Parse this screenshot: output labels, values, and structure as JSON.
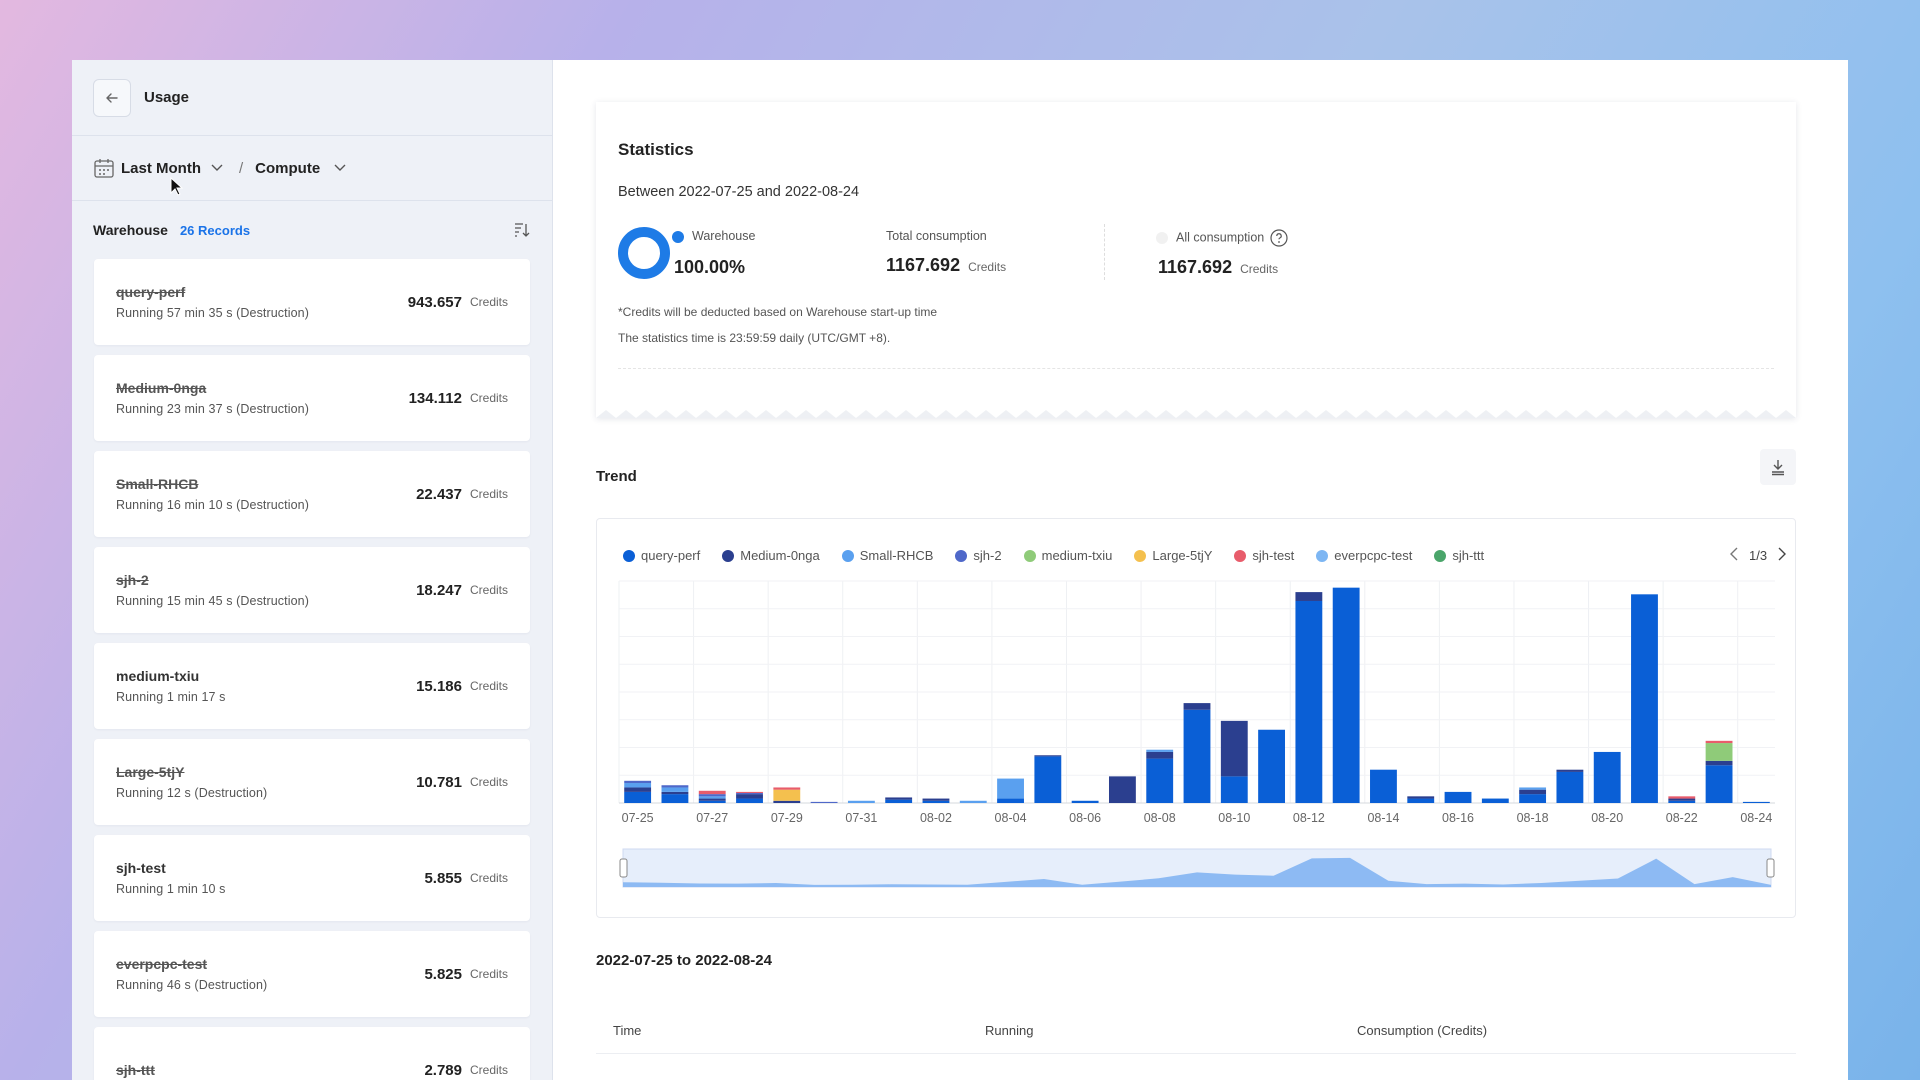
{
  "sidebar": {
    "title": "Usage",
    "period": "Last Month",
    "separator": "/",
    "resource": "Compute",
    "list_title": "Warehouse",
    "records": "26 Records",
    "credits_unit": "Credits",
    "items": [
      {
        "name": "query-perf",
        "strike": true,
        "sub": "Running 57 min 35 s (Destruction)",
        "value": "943.657"
      },
      {
        "name": "Medium-0nga",
        "strike": true,
        "sub": "Running 23 min 37 s (Destruction)",
        "value": "134.112"
      },
      {
        "name": "Small-RHCB",
        "strike": true,
        "sub": "Running 16 min 10 s (Destruction)",
        "value": "22.437"
      },
      {
        "name": "sjh-2",
        "strike": true,
        "sub": "Running 15 min 45 s (Destruction)",
        "value": "18.247"
      },
      {
        "name": "medium-txiu",
        "strike": false,
        "sub": "Running 1 min 17 s",
        "value": "15.186"
      },
      {
        "name": "Large-5tjY",
        "strike": true,
        "sub": "Running 12 s (Destruction)",
        "value": "10.781"
      },
      {
        "name": "sjh-test",
        "strike": false,
        "sub": "Running 1 min 10 s",
        "value": "5.855"
      },
      {
        "name": "everpcpc-test",
        "strike": true,
        "sub": "Running 46 s (Destruction)",
        "value": "5.825"
      },
      {
        "name": "sjh-ttt",
        "strike": true,
        "sub": "",
        "value": "2.789"
      }
    ]
  },
  "stats": {
    "title": "Statistics",
    "between": "Between 2022-07-25 and 2022-08-24",
    "warehouse_label": "Warehouse",
    "warehouse_pct": "100.00%",
    "total_label": "Total consumption",
    "total_value": "1167.692",
    "all_label": "All consumption",
    "all_value": "1167.692",
    "unit": "Credits",
    "note1": "*Credits will be deducted based on Warehouse start-up time",
    "note2": "The statistics time is 23:59:59 daily (UTC/GMT +8).",
    "colors": {
      "accent": "#1e7be6"
    }
  },
  "trend": {
    "title": "Trend",
    "pager": "1/3",
    "range_title": "2022-07-25 to 2022-08-24",
    "table_headers": [
      "Time",
      "Running",
      "Consumption (Credits)"
    ]
  },
  "chart_data": {
    "type": "bar",
    "stacked": true,
    "legend": [
      {
        "name": "query-perf",
        "color": "#0a5fd6"
      },
      {
        "name": "Medium-0nga",
        "color": "#2b3f8f"
      },
      {
        "name": "Small-RHCB",
        "color": "#5aa0ef"
      },
      {
        "name": "sjh-2",
        "color": "#4f68c9"
      },
      {
        "name": "medium-txiu",
        "color": "#8fcb79"
      },
      {
        "name": "Large-5tjY",
        "color": "#f4c04e"
      },
      {
        "name": "sjh-test",
        "color": "#e85c6b"
      },
      {
        "name": "everpcpc-test",
        "color": "#7db6f3"
      },
      {
        "name": "sjh-ttt",
        "color": "#4aa56a"
      }
    ],
    "x_tick_labels": [
      "07-25",
      "07-27",
      "07-29",
      "07-31",
      "08-02",
      "08-04",
      "08-06",
      "08-08",
      "08-10",
      "08-12",
      "08-14",
      "08-16",
      "08-18",
      "08-20",
      "08-22",
      "08-24"
    ],
    "categories": [
      "07-25",
      "07-26",
      "07-27",
      "07-28",
      "07-29",
      "07-30",
      "07-31",
      "08-01",
      "08-02",
      "08-03",
      "08-04",
      "08-05",
      "08-06",
      "08-07",
      "08-08",
      "08-09",
      "08-10",
      "08-11",
      "08-12",
      "08-13",
      "08-14",
      "08-15",
      "08-16",
      "08-17",
      "08-18",
      "08-19",
      "08-20",
      "08-21",
      "08-22",
      "08-23",
      "08-24"
    ],
    "series": [
      {
        "name": "query-perf",
        "values": [
          5,
          4,
          1,
          2,
          0,
          0,
          0,
          1.5,
          1,
          0,
          2,
          21,
          1,
          0,
          20,
          42,
          12,
          33,
          91,
          97,
          15,
          2,
          5,
          2,
          4,
          14,
          23,
          94,
          1,
          17,
          0.5
        ]
      },
      {
        "name": "Medium-0nga",
        "values": [
          2,
          1,
          1,
          2,
          1,
          0,
          0,
          1,
          1,
          0,
          0,
          0.5,
          0,
          12,
          3,
          3,
          25,
          0,
          4,
          0,
          0,
          1,
          0,
          0,
          2,
          1,
          0,
          0,
          1,
          2,
          0
        ]
      },
      {
        "name": "Small-RHCB",
        "values": [
          2,
          2,
          1,
          0,
          0,
          0,
          1,
          0,
          0,
          1,
          9,
          0,
          0,
          0,
          1,
          0,
          0,
          0,
          0,
          0,
          0,
          0,
          0,
          0,
          1,
          0,
          0,
          0,
          0,
          0,
          0
        ]
      },
      {
        "name": "sjh-2",
        "values": [
          1,
          1,
          1,
          0.5,
          0,
          0.5,
          0,
          0,
          0,
          0,
          0,
          0,
          0,
          0,
          0,
          0,
          0,
          0,
          0,
          0,
          0,
          0,
          0,
          0,
          0,
          0,
          0,
          0,
          0,
          0,
          0
        ]
      },
      {
        "name": "medium-txiu",
        "values": [
          0,
          0,
          0,
          0,
          0,
          0,
          0,
          0,
          0,
          0,
          0,
          0,
          0,
          0,
          0,
          0,
          0,
          0,
          0,
          0,
          0,
          0,
          0,
          0,
          0,
          0,
          0,
          0,
          0,
          8,
          0
        ]
      },
      {
        "name": "Large-5tjY",
        "values": [
          0,
          0,
          0,
          0,
          5,
          0,
          0,
          0,
          0,
          0,
          0,
          0,
          0,
          0,
          0,
          0,
          0,
          0,
          0,
          0,
          0,
          0,
          0,
          0,
          0,
          0,
          0,
          0,
          0,
          0,
          0
        ]
      },
      {
        "name": "sjh-test",
        "values": [
          0,
          0,
          1.5,
          0.5,
          1,
          0,
          0,
          0,
          0,
          0,
          0,
          0,
          0,
          0,
          0,
          0,
          0,
          0,
          0,
          0,
          0,
          0,
          0,
          0,
          0,
          0,
          0,
          0,
          1,
          1,
          0
        ]
      }
    ],
    "ylim": [
      0,
      100
    ],
    "grid": true,
    "legend_placement": "top"
  }
}
